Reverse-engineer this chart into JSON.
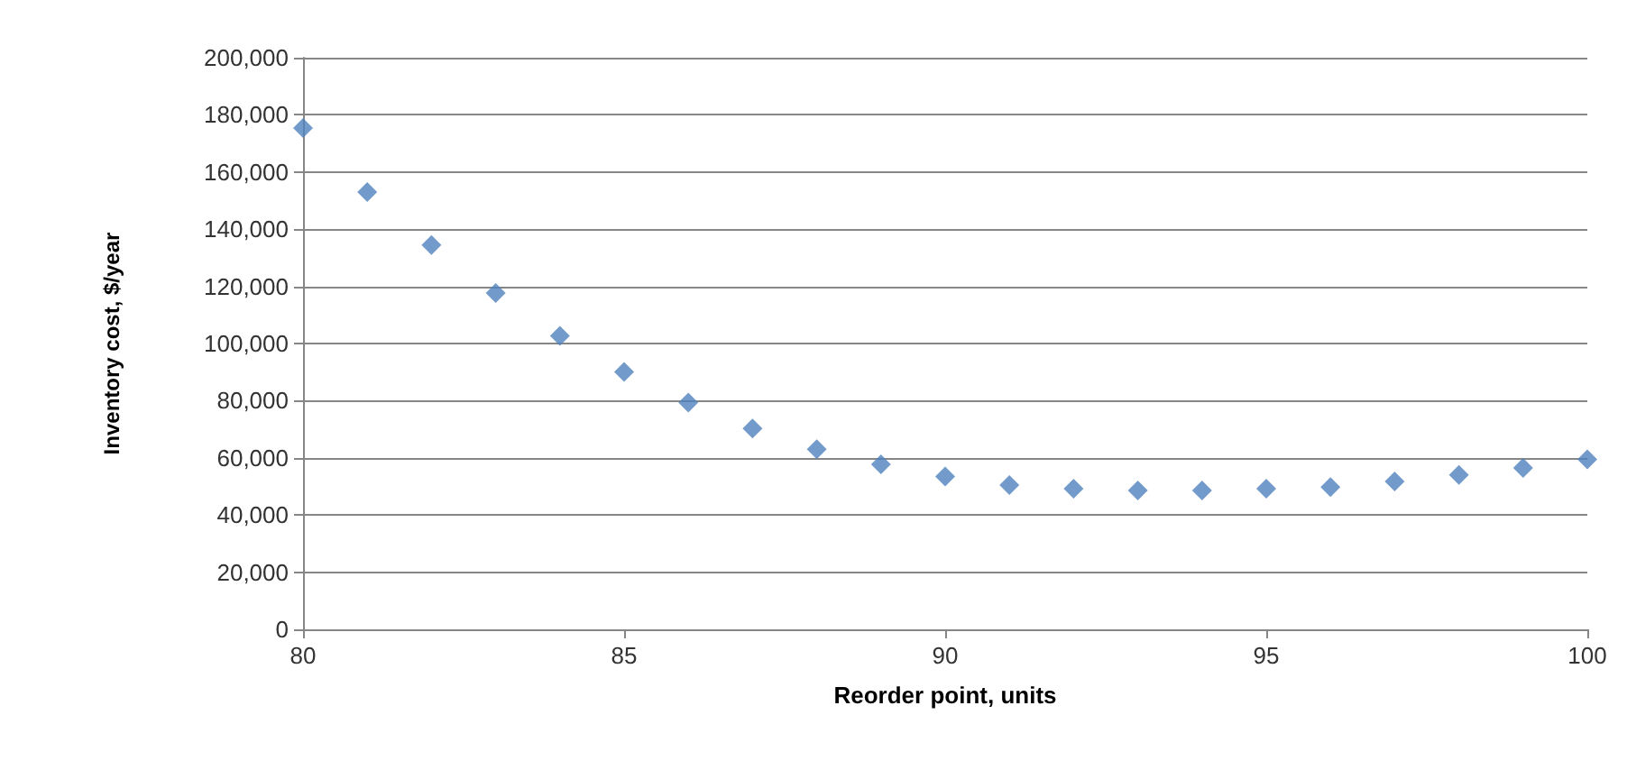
{
  "chart_data": {
    "type": "scatter",
    "xlabel": "Reorder point, units",
    "ylabel": "Inventory cost, $/year",
    "x": [
      80,
      81,
      82,
      83,
      84,
      85,
      86,
      87,
      88,
      89,
      90,
      91,
      92,
      93,
      94,
      95,
      96,
      97,
      98,
      99,
      100
    ],
    "series": [
      {
        "color": "#4f81bd",
        "values": [
          175400,
          153000,
          134500,
          117700,
          102700,
          90100,
          79300,
          70300,
          63000,
          57700,
          53500,
          50500,
          49200,
          48600,
          48600,
          49200,
          49800,
          51700,
          54000,
          56500,
          59500
        ]
      }
    ],
    "xlim": [
      80,
      100
    ],
    "xticks": [
      80,
      85,
      90,
      95,
      100
    ],
    "ylim": [
      0,
      200000
    ],
    "yticks": [
      0,
      {
        "value": 20000,
        "label": "20,000"
      },
      {
        "value": 40000,
        "label": "40,000"
      },
      {
        "value": 60000,
        "label": "60,000"
      },
      {
        "value": 80000,
        "label": "80,000"
      },
      {
        "value": 100000,
        "label": "100,000"
      },
      {
        "value": 120000,
        "label": "120,000"
      },
      {
        "value": 140000,
        "label": "140,000"
      },
      {
        "value": 160000,
        "label": "160,000"
      },
      {
        "value": 180000,
        "label": "180,000"
      },
      {
        "value": 200000,
        "label": "200,000"
      }
    ],
    "grid": "y",
    "marker": "diamond"
  }
}
